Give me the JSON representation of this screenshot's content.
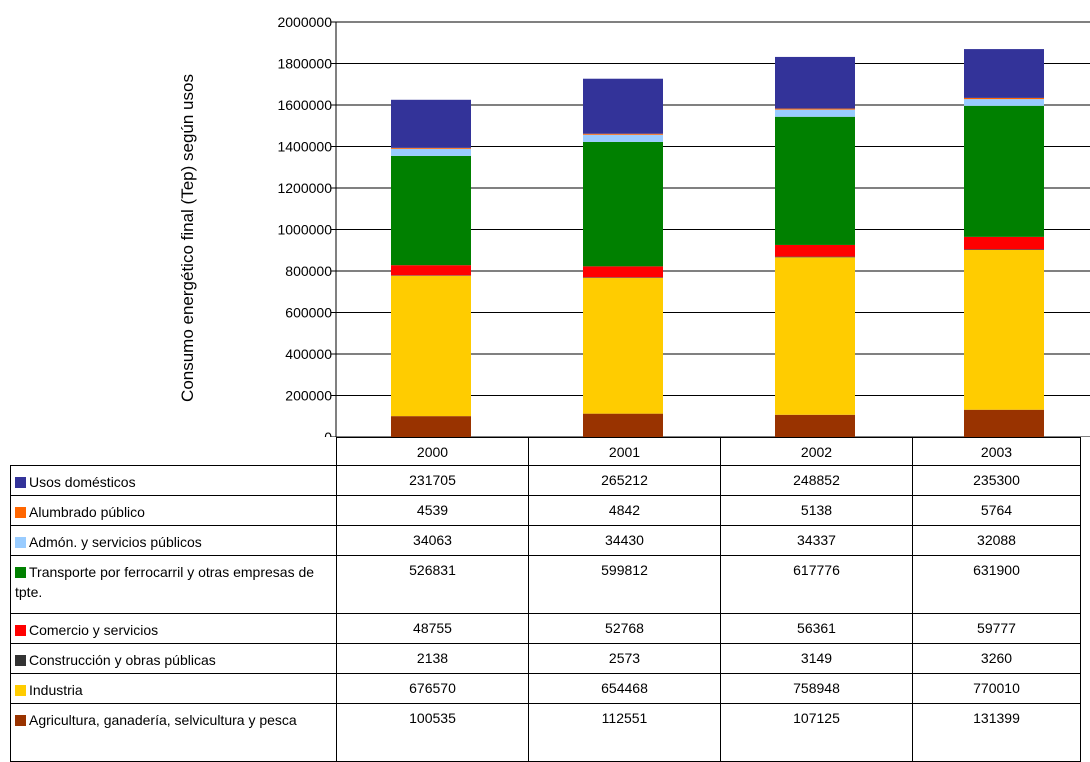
{
  "chart_data": {
    "type": "bar",
    "stacked": true,
    "categories": [
      "2000",
      "2001",
      "2002",
      "2003"
    ],
    "ylabel": "Consumo energético final (Tep) según usos",
    "xlabel": "",
    "ylim": [
      0,
      2000000
    ],
    "yticks": [
      "0",
      "200000",
      "400000",
      "600000",
      "800000",
      "1000000",
      "1200000",
      "1400000",
      "1600000",
      "1800000",
      "2000000"
    ],
    "grid": true,
    "legend_placement": "data table",
    "series": [
      {
        "name": "Usos domésticos",
        "color": "#333399",
        "values": [
          231705,
          265212,
          248852,
          235300
        ]
      },
      {
        "name": "Alumbrado público",
        "color": "#FF6600",
        "values": [
          4539,
          4842,
          5138,
          5764
        ]
      },
      {
        "name": "Admón. y servicios públicos",
        "color": "#99CCFF",
        "values": [
          34063,
          34430,
          34337,
          32088
        ]
      },
      {
        "name": "Transporte por ferrocarril y otras empresas de tpte.",
        "color": "#008000",
        "values": [
          526831,
          599812,
          617776,
          631900
        ]
      },
      {
        "name": "Comercio y servicios",
        "color": "#FF0000",
        "values": [
          48755,
          52768,
          56361,
          59777
        ]
      },
      {
        "name": "Construcción y obras públicas",
        "color": "#333333",
        "values": [
          2138,
          2573,
          3149,
          3260
        ]
      },
      {
        "name": "Industria",
        "color": "#FFCC00",
        "values": [
          676570,
          654468,
          758948,
          770010
        ]
      },
      {
        "name": "Agricultura, ganadería, selvicultura y pesca",
        "color": "#993300",
        "values": [
          100535,
          112551,
          107125,
          131399
        ]
      }
    ],
    "table": {
      "rows": [
        {
          "label": "Usos domésticos",
          "values": [
            "231705",
            "265212",
            "248852",
            "235300"
          ]
        },
        {
          "label": "Alumbrado público",
          "values": [
            "4539",
            "4842",
            "5138",
            "5764"
          ]
        },
        {
          "label": "Admón. y servicios públicos",
          "values": [
            "34063",
            "34430",
            "34337",
            "32088"
          ]
        },
        {
          "label": "Transporte por ferrocarril y otras empresas de tpte.",
          "values": [
            "526831",
            "599812",
            "617776",
            "631900"
          ]
        },
        {
          "label": "Comercio y servicios",
          "values": [
            "48755",
            "52768",
            "56361",
            "59777"
          ]
        },
        {
          "label": "Construcción y obras públicas",
          "values": [
            "2138",
            "2573",
            "3149",
            "3260"
          ]
        },
        {
          "label": "Industria",
          "values": [
            "676570",
            "654468",
            "758948",
            "770010"
          ]
        },
        {
          "label": "Agricultura, ganadería, selvicultura y pesca",
          "values": [
            "100535",
            "112551",
            "107125",
            "131399"
          ]
        }
      ]
    }
  }
}
